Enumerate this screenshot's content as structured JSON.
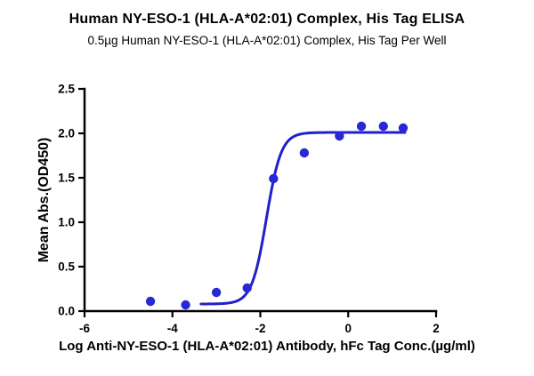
{
  "header": {
    "title": "Human NY-ESO-1 (HLA-A*02:01) Complex, His Tag ELISA",
    "subtitle": "0.5µg Human NY-ESO-1 (HLA-A*02:01) Complex, His Tag Per Well"
  },
  "chart_data": {
    "type": "scatter",
    "title": "Human NY-ESO-1 (HLA-A*02:01) Complex, His Tag ELISA",
    "subtitle": "0.5µg Human NY-ESO-1 (HLA-A*02:01) Complex, His Tag Per Well",
    "xlabel": "Log Anti-NY-ESO-1 (HLA-A*02:01) Antibody, hFc Tag Conc.(µg/ml)",
    "ylabel": "Mean Abs.(OD450)",
    "xlim": [
      -6,
      2
    ],
    "ylim": [
      0,
      2.5
    ],
    "x_ticks": [
      -6,
      -4,
      -2,
      0,
      2
    ],
    "x_tick_labels": [
      "-6",
      "-4",
      "-2",
      "0",
      "2"
    ],
    "y_ticks": [
      0,
      0.5,
      1,
      1.5,
      2,
      2.5
    ],
    "y_tick_labels": [
      "0.0",
      "0.5",
      "1.0",
      "1.5",
      "2.0",
      "2.5"
    ],
    "grid": false,
    "legend": null,
    "color": "#2020CC",
    "point_color": "#2828D6",
    "axis_color": "#000000",
    "points": [
      {
        "x": -4.5,
        "y": 0.11
      },
      {
        "x": -3.7,
        "y": 0.07
      },
      {
        "x": -3.0,
        "y": 0.21
      },
      {
        "x": -2.3,
        "y": 0.26
      },
      {
        "x": -1.7,
        "y": 1.49
      },
      {
        "x": -1.0,
        "y": 1.78
      },
      {
        "x": -0.2,
        "y": 1.97
      },
      {
        "x": 0.3,
        "y": 2.08
      },
      {
        "x": 0.8,
        "y": 2.08
      },
      {
        "x": 1.25,
        "y": 2.06
      }
    ],
    "fit_curve": {
      "model": "4PL",
      "bottom": 0.08,
      "top": 2.01,
      "log_ec50": -1.86,
      "hill": 2.6,
      "x_range": [
        -3.35,
        1.3
      ]
    }
  }
}
